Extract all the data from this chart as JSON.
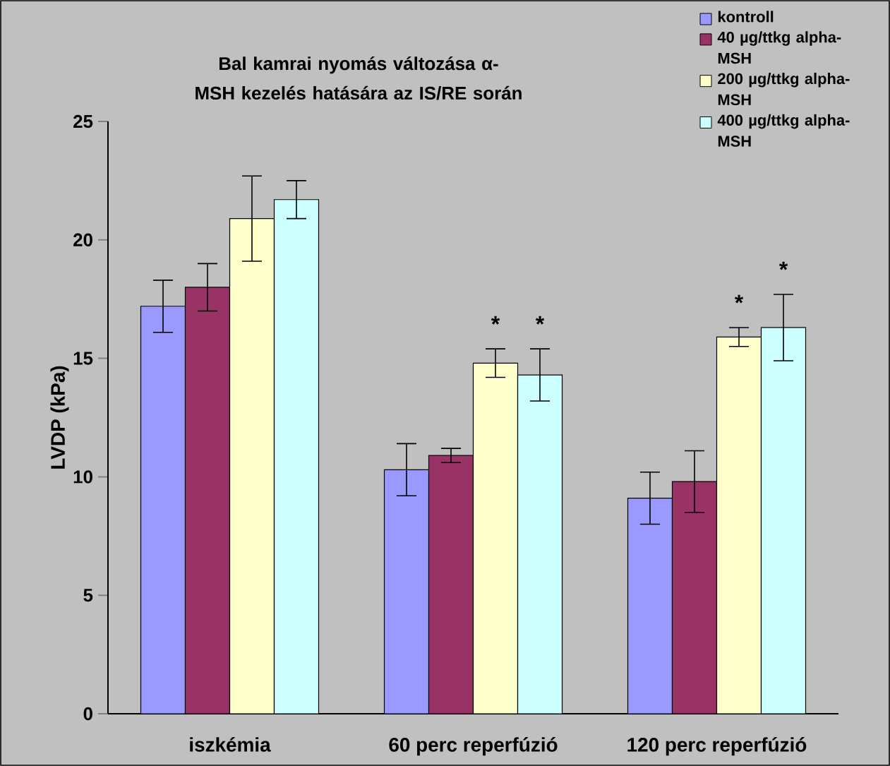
{
  "chart_data": {
    "type": "bar",
    "title": "Bal kamrai nyomás változása α-MSH kezelés hatására az IS/RE során",
    "ylabel": "LVDP (kPa)",
    "categories": [
      "iszkémia",
      "60 perc reperfúzió",
      "120 perc reperfúzió"
    ],
    "series": [
      {
        "name": "kontroll",
        "color": "#9999ff",
        "values": [
          17.2,
          10.3,
          9.1
        ],
        "errors": [
          1.1,
          1.1,
          1.1
        ]
      },
      {
        "name": "40 µg/ttkg alpha-MSH",
        "color": "#993366",
        "values": [
          18.0,
          10.9,
          9.8
        ],
        "errors": [
          1.0,
          0.3,
          1.3
        ]
      },
      {
        "name": "200 µg/ttkg alpha-MSH",
        "color": "#ffffcc",
        "values": [
          20.9,
          14.8,
          15.9
        ],
        "errors": [
          1.8,
          0.6,
          0.4
        ]
      },
      {
        "name": "400 µg/ttkg alpha-MSH",
        "color": "#ccffff",
        "values": [
          21.7,
          14.3,
          16.3
        ],
        "errors": [
          0.8,
          1.1,
          1.4
        ]
      }
    ],
    "ylim": [
      0,
      25
    ],
    "yticks": [
      0,
      5,
      10,
      15,
      20,
      25
    ],
    "legend": "top right",
    "annotations": [
      "*",
      "*",
      "*",
      "*"
    ]
  }
}
